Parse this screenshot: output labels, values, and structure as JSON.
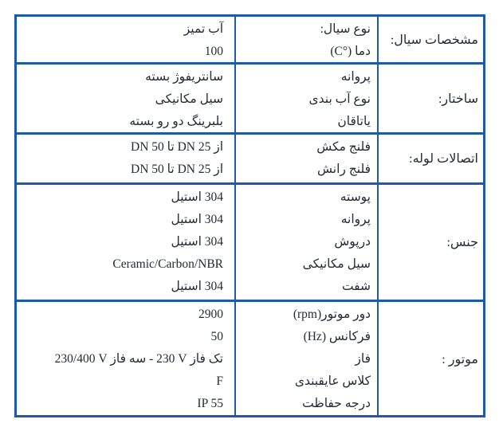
{
  "colors": {
    "border_blue": "#1d5aa8",
    "text": "#242b36",
    "background": "#ffffff"
  },
  "table": {
    "sections": [
      {
        "category": "مشخصات سیال:",
        "rows": [
          {
            "property": "نوع سیال:",
            "value": "آب تمیز"
          },
          {
            "property": "دما ‪(C°)‬",
            "value": "100"
          }
        ]
      },
      {
        "category": "ساختار:",
        "rows": [
          {
            "property": "پروانه",
            "value": "سانتریفوژ بسته"
          },
          {
            "property": "نوع آب بندی",
            "value": "سیل مکانیکی"
          },
          {
            "property": "یاتاقان",
            "value": "بلبرینگ دو رو بسته"
          }
        ]
      },
      {
        "category": "اتصالات لوله:",
        "rows": [
          {
            "property": "فلنج مکش",
            "value": "از DN 25 تا DN 50"
          },
          {
            "property": "فلنج رانش",
            "value": "از DN 25 تا DN 50"
          }
        ]
      },
      {
        "category": "جنس:",
        "rows": [
          {
            "property": "پوسته",
            "value": "304 استیل"
          },
          {
            "property": "پروانه",
            "value": "304 استیل"
          },
          {
            "property": "درپوش",
            "value": "304 استیل"
          },
          {
            "property": "سیل مکانیکی",
            "value": "Ceramic/Carbon/NBR"
          },
          {
            "property": "شفت",
            "value": "304 استیل"
          }
        ]
      },
      {
        "category": "موتور :",
        "rows": [
          {
            "property": "دور موتور‪(rpm)‬",
            "value": "2900"
          },
          {
            "property": "فرکانس ‪(Hz)‬",
            "value": "50"
          },
          {
            "property": "فاز",
            "value": "تک فاز ‪230 V‬  - سه فاز ‪230/400 V‬"
          },
          {
            "property": "کلاس عایقبندی",
            "value": "F"
          },
          {
            "property": "درجه حفاظت",
            "value": "IP 55"
          }
        ]
      }
    ]
  }
}
